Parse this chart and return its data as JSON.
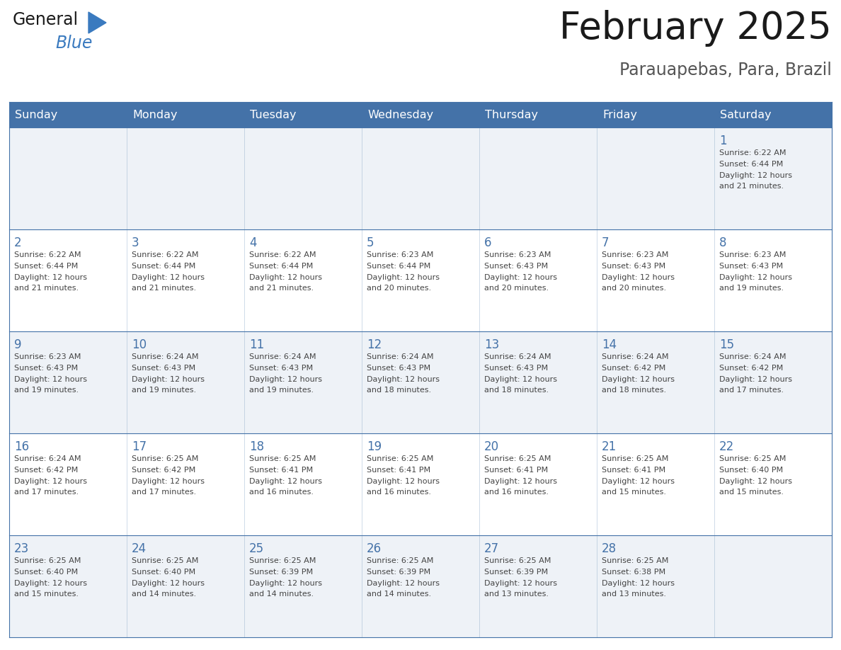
{
  "title": "February 2025",
  "subtitle": "Parauapebas, Para, Brazil",
  "days_of_week": [
    "Sunday",
    "Monday",
    "Tuesday",
    "Wednesday",
    "Thursday",
    "Friday",
    "Saturday"
  ],
  "header_bg": "#4472a8",
  "header_text": "#ffffff",
  "row_bg_light": "#eef2f7",
  "row_bg_white": "#ffffff",
  "border_color": "#4472a8",
  "cell_border_color": "#7a9cc0",
  "text_color": "#444444",
  "day_num_color": "#4472a8",
  "title_color": "#1a1a1a",
  "subtitle_color": "#555555",
  "logo_general_color": "#1a1a1a",
  "logo_blue_color": "#3a7abf",
  "calendar_data": [
    [
      null,
      null,
      null,
      null,
      null,
      null,
      {
        "day": "1",
        "sunrise": "6:22 AM",
        "sunset": "6:44 PM",
        "daylight_l1": "Daylight: 12 hours",
        "daylight_l2": "and 21 minutes."
      }
    ],
    [
      {
        "day": "2",
        "sunrise": "6:22 AM",
        "sunset": "6:44 PM",
        "daylight_l1": "Daylight: 12 hours",
        "daylight_l2": "and 21 minutes."
      },
      {
        "day": "3",
        "sunrise": "6:22 AM",
        "sunset": "6:44 PM",
        "daylight_l1": "Daylight: 12 hours",
        "daylight_l2": "and 21 minutes."
      },
      {
        "day": "4",
        "sunrise": "6:22 AM",
        "sunset": "6:44 PM",
        "daylight_l1": "Daylight: 12 hours",
        "daylight_l2": "and 21 minutes."
      },
      {
        "day": "5",
        "sunrise": "6:23 AM",
        "sunset": "6:44 PM",
        "daylight_l1": "Daylight: 12 hours",
        "daylight_l2": "and 20 minutes."
      },
      {
        "day": "6",
        "sunrise": "6:23 AM",
        "sunset": "6:43 PM",
        "daylight_l1": "Daylight: 12 hours",
        "daylight_l2": "and 20 minutes."
      },
      {
        "day": "7",
        "sunrise": "6:23 AM",
        "sunset": "6:43 PM",
        "daylight_l1": "Daylight: 12 hours",
        "daylight_l2": "and 20 minutes."
      },
      {
        "day": "8",
        "sunrise": "6:23 AM",
        "sunset": "6:43 PM",
        "daylight_l1": "Daylight: 12 hours",
        "daylight_l2": "and 19 minutes."
      }
    ],
    [
      {
        "day": "9",
        "sunrise": "6:23 AM",
        "sunset": "6:43 PM",
        "daylight_l1": "Daylight: 12 hours",
        "daylight_l2": "and 19 minutes."
      },
      {
        "day": "10",
        "sunrise": "6:24 AM",
        "sunset": "6:43 PM",
        "daylight_l1": "Daylight: 12 hours",
        "daylight_l2": "and 19 minutes."
      },
      {
        "day": "11",
        "sunrise": "6:24 AM",
        "sunset": "6:43 PM",
        "daylight_l1": "Daylight: 12 hours",
        "daylight_l2": "and 19 minutes."
      },
      {
        "day": "12",
        "sunrise": "6:24 AM",
        "sunset": "6:43 PM",
        "daylight_l1": "Daylight: 12 hours",
        "daylight_l2": "and 18 minutes."
      },
      {
        "day": "13",
        "sunrise": "6:24 AM",
        "sunset": "6:43 PM",
        "daylight_l1": "Daylight: 12 hours",
        "daylight_l2": "and 18 minutes."
      },
      {
        "day": "14",
        "sunrise": "6:24 AM",
        "sunset": "6:42 PM",
        "daylight_l1": "Daylight: 12 hours",
        "daylight_l2": "and 18 minutes."
      },
      {
        "day": "15",
        "sunrise": "6:24 AM",
        "sunset": "6:42 PM",
        "daylight_l1": "Daylight: 12 hours",
        "daylight_l2": "and 17 minutes."
      }
    ],
    [
      {
        "day": "16",
        "sunrise": "6:24 AM",
        "sunset": "6:42 PM",
        "daylight_l1": "Daylight: 12 hours",
        "daylight_l2": "and 17 minutes."
      },
      {
        "day": "17",
        "sunrise": "6:25 AM",
        "sunset": "6:42 PM",
        "daylight_l1": "Daylight: 12 hours",
        "daylight_l2": "and 17 minutes."
      },
      {
        "day": "18",
        "sunrise": "6:25 AM",
        "sunset": "6:41 PM",
        "daylight_l1": "Daylight: 12 hours",
        "daylight_l2": "and 16 minutes."
      },
      {
        "day": "19",
        "sunrise": "6:25 AM",
        "sunset": "6:41 PM",
        "daylight_l1": "Daylight: 12 hours",
        "daylight_l2": "and 16 minutes."
      },
      {
        "day": "20",
        "sunrise": "6:25 AM",
        "sunset": "6:41 PM",
        "daylight_l1": "Daylight: 12 hours",
        "daylight_l2": "and 16 minutes."
      },
      {
        "day": "21",
        "sunrise": "6:25 AM",
        "sunset": "6:41 PM",
        "daylight_l1": "Daylight: 12 hours",
        "daylight_l2": "and 15 minutes."
      },
      {
        "day": "22",
        "sunrise": "6:25 AM",
        "sunset": "6:40 PM",
        "daylight_l1": "Daylight: 12 hours",
        "daylight_l2": "and 15 minutes."
      }
    ],
    [
      {
        "day": "23",
        "sunrise": "6:25 AM",
        "sunset": "6:40 PM",
        "daylight_l1": "Daylight: 12 hours",
        "daylight_l2": "and 15 minutes."
      },
      {
        "day": "24",
        "sunrise": "6:25 AM",
        "sunset": "6:40 PM",
        "daylight_l1": "Daylight: 12 hours",
        "daylight_l2": "and 14 minutes."
      },
      {
        "day": "25",
        "sunrise": "6:25 AM",
        "sunset": "6:39 PM",
        "daylight_l1": "Daylight: 12 hours",
        "daylight_l2": "and 14 minutes."
      },
      {
        "day": "26",
        "sunrise": "6:25 AM",
        "sunset": "6:39 PM",
        "daylight_l1": "Daylight: 12 hours",
        "daylight_l2": "and 14 minutes."
      },
      {
        "day": "27",
        "sunrise": "6:25 AM",
        "sunset": "6:39 PM",
        "daylight_l1": "Daylight: 12 hours",
        "daylight_l2": "and 13 minutes."
      },
      {
        "day": "28",
        "sunrise": "6:25 AM",
        "sunset": "6:38 PM",
        "daylight_l1": "Daylight: 12 hours",
        "daylight_l2": "and 13 minutes."
      },
      null
    ]
  ]
}
